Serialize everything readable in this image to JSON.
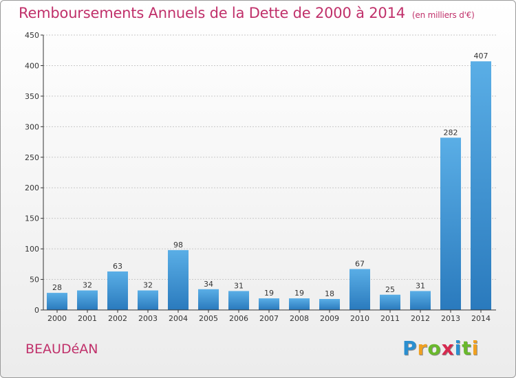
{
  "title": "Remboursements Annuels de la Dette de 2000 à 2014",
  "title_unit": "(en milliers d'€)",
  "town": "BEAUDéAN",
  "brand": {
    "letters": [
      "P",
      "r",
      "o",
      "x",
      "i",
      "t",
      "i"
    ],
    "colors": [
      "#2a8fd0",
      "#f0a020",
      "#69b82c",
      "#d6294f",
      "#2a8fd0",
      "#69b82c",
      "#f0a020"
    ]
  },
  "colors": {
    "title": "#c0306a",
    "bar_top": "#5aaee6",
    "bar_bottom": "#2a7abd",
    "grid": "#c8c8c8"
  },
  "chart_data": {
    "type": "bar",
    "categories": [
      "2000",
      "2001",
      "2002",
      "2003",
      "2004",
      "2005",
      "2006",
      "2007",
      "2008",
      "2009",
      "2010",
      "2011",
      "2012",
      "2013",
      "2014"
    ],
    "values": [
      28,
      32,
      63,
      32,
      98,
      34,
      31,
      19,
      19,
      18,
      67,
      25,
      31,
      282,
      407
    ],
    "yticks": [
      0,
      50,
      100,
      150,
      200,
      250,
      300,
      350,
      400,
      450
    ],
    "ylim": [
      0,
      450
    ],
    "grid": true
  }
}
